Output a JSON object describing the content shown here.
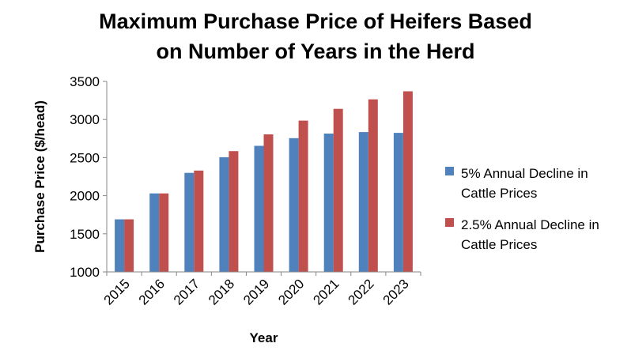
{
  "chart_data": {
    "type": "bar",
    "title_line1": "Maximum Purchase Price of Heifers Based",
    "title_line2": "on Number of Years in the Herd",
    "xlabel": "Year",
    "ylabel": "Purchase Price ($/head)",
    "ylim": [
      1000,
      3500
    ],
    "yticks": [
      1000,
      1500,
      2000,
      2500,
      3000,
      3500
    ],
    "categories": [
      "2015",
      "2016",
      "2017",
      "2018",
      "2019",
      "2020",
      "2021",
      "2022",
      "2023"
    ],
    "series": [
      {
        "name": "5% Annual Decline in Cattle Prices",
        "legend_lines": [
          "5% Annual Decline in",
          "Cattle Prices"
        ],
        "color": "#4f81bd",
        "values": [
          1690,
          2030,
          2300,
          2505,
          2655,
          2755,
          2815,
          2835,
          2825
        ]
      },
      {
        "name": "2.5% Annual Decline in Cattle Prices",
        "legend_lines": [
          "2.5% Annual Decline in",
          "Cattle Prices"
        ],
        "color": "#c0504d",
        "values": [
          1690,
          2030,
          2330,
          2585,
          2805,
          2985,
          3140,
          3265,
          3370
        ]
      }
    ],
    "grid": false,
    "legend_position": "right"
  }
}
